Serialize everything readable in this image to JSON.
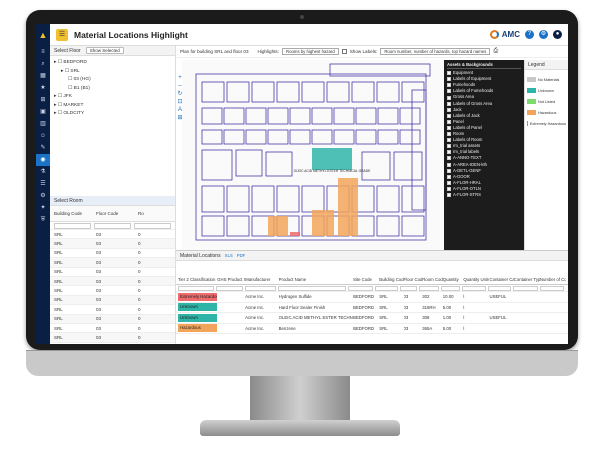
{
  "app": {
    "title": "Material Locations Highlight",
    "brand": "AMC",
    "tile_glyph": "☰"
  },
  "nav_icons": [
    "menu-icon",
    "search-icon",
    "building-icon",
    "star-icon",
    "grid-icon",
    "box-icon",
    "chart-icon",
    "people-icon",
    "wrench-icon",
    "highlight-icon",
    "flask-icon",
    "layers-icon",
    "settings-icon",
    "bulb-icon",
    "shield-icon"
  ],
  "select_floor": {
    "header": "Select Floor",
    "button": "Show Selected",
    "tree": [
      {
        "label": "BEDFORD",
        "indent": 0
      },
      {
        "label": "SRL",
        "indent": 1
      },
      {
        "label": "03 (HG)",
        "indent": 2
      },
      {
        "label": "B1 (B1)",
        "indent": 2
      },
      {
        "label": "JFK",
        "indent": 0
      },
      {
        "label": "MARKET",
        "indent": 0
      },
      {
        "label": "OLDCITY",
        "indent": 0
      }
    ]
  },
  "select_room": {
    "header": "Select Room",
    "columns": [
      "Building Code",
      "Floor Code",
      "Ro"
    ],
    "rows": [
      [
        "SRL",
        "03",
        "0"
      ],
      [
        "SRL",
        "03",
        "0"
      ],
      [
        "SRL",
        "03",
        "0"
      ],
      [
        "SRL",
        "03",
        "0"
      ],
      [
        "SRL",
        "03",
        "0"
      ],
      [
        "SRL",
        "03",
        "0"
      ],
      [
        "SRL",
        "03",
        "0"
      ],
      [
        "SRL",
        "03",
        "0"
      ],
      [
        "SRL",
        "03",
        "0"
      ],
      [
        "SRL",
        "03",
        "0"
      ],
      [
        "SRL",
        "03",
        "0"
      ],
      [
        "SRL",
        "03",
        "0"
      ]
    ]
  },
  "plan_bar": {
    "title": "Plan for building SRL and floor 03",
    "highlights_label": "Highlights:",
    "highlights_value": "Rooms by highest hazard",
    "show_labels": "Show Labels:",
    "labels_value": "Room number, number of hazards, top hazard names"
  },
  "plan_annotation": "OLEIC ACID METHYL ESTER TECHNICAL GRADE",
  "plan_tools": [
    "+",
    "–",
    "↻",
    "⊡",
    "A",
    "⊞"
  ],
  "assets_layers": {
    "header": "Assets & Backgrounds",
    "items": [
      "Equipment",
      "Labels of Equipment",
      "Fumehoods",
      "Labels of Fumehoods",
      "Gross Area",
      "Labels of Gross Area",
      "Jack",
      "Labels of Jack",
      "Panel",
      "Labels of Panel",
      "Room",
      "Labels of Room",
      "rm_trial assets",
      "rm_trial labels",
      "A-ANNO-TEXT",
      "A-AREA-IDEN-kth",
      "A-DETL-GENF",
      "A-DOOR",
      "A-FLOR-HRAL",
      "A-FLOR-OTLN",
      "A-FLOR-STRS"
    ]
  },
  "legend": {
    "header": "Legend",
    "items": [
      {
        "label": "No Materials",
        "color": "#c8c8c8"
      },
      {
        "label": "Unknown",
        "color": "#2fb5a8"
      },
      {
        "label": "Not Listed",
        "color": "#7bdc6c"
      },
      {
        "label": "Hazardous",
        "color": "#f2a55a"
      },
      {
        "label": "Extremely Hazardous",
        "color": "#ee6b6b"
      }
    ]
  },
  "materials": {
    "header": "Material Locations",
    "tabs": [
      "XLS",
      "PDF"
    ],
    "columns": [
      "Tier 2 Classification",
      "GHS Product Identifier",
      "Manufacturer",
      "Product Name",
      "Site Code",
      "Building Code",
      "Floor Code",
      "Room Code",
      "Quantity",
      "Quantity Units",
      "Container Category",
      "Container Type",
      "Number of Containers"
    ],
    "rows": [
      {
        "tier": "Extremely Hazardous",
        "color": "#ee6b6b",
        "cells": [
          "",
          "Acme Inc.",
          "Hydrogen Sulfide",
          "BEDFORD",
          "SRL",
          "03",
          "302",
          "10.00",
          "l",
          "USEFUL",
          "",
          ""
        ]
      },
      {
        "tier": "Unknown",
        "color": "#2fb5a8",
        "cells": [
          "",
          "Acme Inc.",
          "Hard Floor Sealer Finish",
          "BEDFORD",
          "SRL",
          "03",
          "316RH",
          "5.00",
          "l",
          "",
          "",
          ""
        ]
      },
      {
        "tier": "Unknown",
        "color": "#2fb5a8",
        "cells": [
          "",
          "Acme Inc.",
          "OLEIC ACID METHYL ESTER TECHNICAL GRADE",
          "BEDFORD",
          "SRL",
          "03",
          "308",
          "1.00",
          "l",
          "USEFUL",
          "",
          ""
        ]
      },
      {
        "tier": "Hazardous",
        "color": "#f2a55a",
        "cells": [
          "",
          "Acme Inc.",
          "Benzene",
          "BEDFORD",
          "SRL",
          "03",
          "365A",
          "5.00",
          "l",
          "",
          "",
          ""
        ]
      }
    ]
  }
}
